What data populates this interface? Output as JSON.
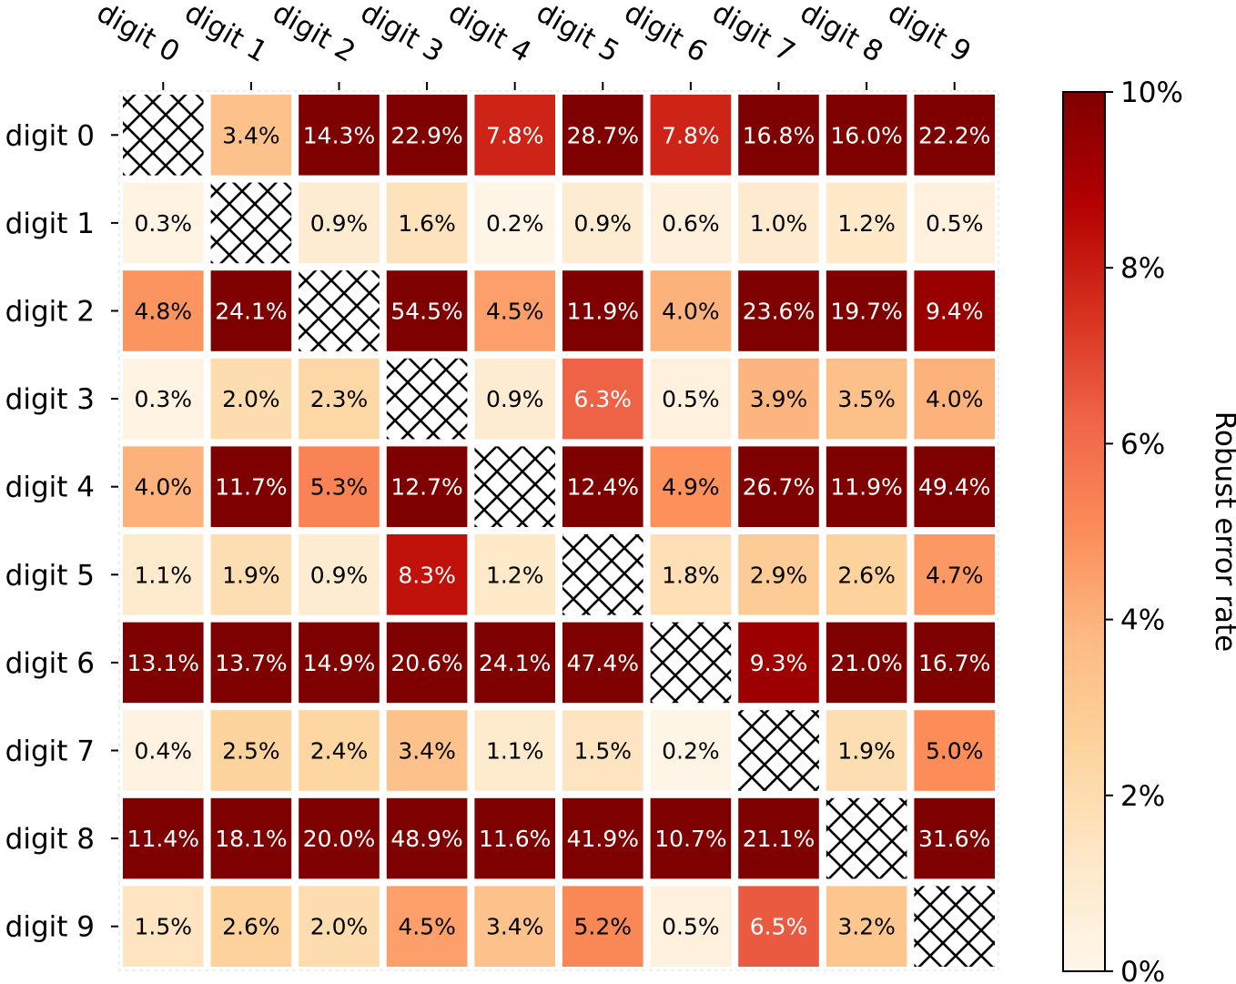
{
  "chart_data": {
    "type": "heatmap",
    "rows": [
      "digit 0",
      "digit 1",
      "digit 2",
      "digit 3",
      "digit 4",
      "digit 5",
      "digit 6",
      "digit 7",
      "digit 8",
      "digit 9"
    ],
    "columns": [
      "digit 0",
      "digit 1",
      "digit 2",
      "digit 3",
      "digit 4",
      "digit 5",
      "digit 6",
      "digit 7",
      "digit 8",
      "digit 9"
    ],
    "values": [
      [
        null,
        3.4,
        14.3,
        22.9,
        7.8,
        28.7,
        7.8,
        16.8,
        16.0,
        22.2
      ],
      [
        0.3,
        null,
        0.9,
        1.6,
        0.2,
        0.9,
        0.6,
        1.0,
        1.2,
        0.5
      ],
      [
        4.8,
        24.1,
        null,
        54.5,
        4.5,
        11.9,
        4.0,
        23.6,
        19.7,
        9.4
      ],
      [
        0.3,
        2.0,
        2.3,
        null,
        0.9,
        6.3,
        0.5,
        3.9,
        3.5,
        4.0
      ],
      [
        4.0,
        11.7,
        5.3,
        12.7,
        null,
        12.4,
        4.9,
        26.7,
        11.9,
        49.4
      ],
      [
        1.1,
        1.9,
        0.9,
        8.3,
        1.2,
        null,
        1.8,
        2.9,
        2.6,
        4.7
      ],
      [
        13.1,
        13.7,
        14.9,
        20.6,
        24.1,
        47.4,
        null,
        9.3,
        21.0,
        16.7
      ],
      [
        0.4,
        2.5,
        2.4,
        3.4,
        1.1,
        1.5,
        0.2,
        null,
        1.9,
        5.0
      ],
      [
        11.4,
        18.1,
        20.0,
        48.9,
        11.6,
        41.9,
        10.7,
        21.1,
        null,
        31.6
      ],
      [
        1.5,
        2.6,
        2.0,
        4.5,
        3.4,
        5.2,
        0.5,
        6.5,
        3.2,
        null
      ]
    ],
    "cell_labels": [
      [
        "",
        "3.4%",
        "14.3%",
        "22.9%",
        "7.8%",
        "28.7%",
        "7.8%",
        "16.8%",
        "16.0%",
        "22.2%"
      ],
      [
        "0.3%",
        "",
        "0.9%",
        "1.6%",
        "0.2%",
        "0.9%",
        "0.6%",
        "1.0%",
        "1.2%",
        "0.5%"
      ],
      [
        "4.8%",
        "24.1%",
        "",
        "54.5%",
        "4.5%",
        "11.9%",
        "4.0%",
        "23.6%",
        "19.7%",
        "9.4%"
      ],
      [
        "0.3%",
        "2.0%",
        "2.3%",
        "",
        "0.9%",
        "6.3%",
        "0.5%",
        "3.9%",
        "3.5%",
        "4.0%"
      ],
      [
        "4.0%",
        "11.7%",
        "5.3%",
        "12.7%",
        "",
        "12.4%",
        "4.9%",
        "26.7%",
        "11.9%",
        "49.4%"
      ],
      [
        "1.1%",
        "1.9%",
        "0.9%",
        "8.3%",
        "1.2%",
        "",
        "1.8%",
        "2.9%",
        "2.6%",
        "4.7%"
      ],
      [
        "13.1%",
        "13.7%",
        "14.9%",
        "20.6%",
        "24.1%",
        "47.4%",
        "",
        "9.3%",
        "21.0%",
        "16.7%"
      ],
      [
        "0.4%",
        "2.5%",
        "2.4%",
        "3.4%",
        "1.1%",
        "1.5%",
        "0.2%",
        "",
        "1.9%",
        "5.0%"
      ],
      [
        "11.4%",
        "18.1%",
        "20.0%",
        "48.9%",
        "11.6%",
        "41.9%",
        "10.7%",
        "21.1%",
        "",
        "31.6%"
      ],
      [
        "1.5%",
        "2.6%",
        "2.0%",
        "4.5%",
        "3.4%",
        "5.2%",
        "0.5%",
        "6.5%",
        "3.2%",
        ""
      ]
    ],
    "diagonal": "hatched",
    "colorbar": {
      "label": "Robust error rate",
      "range": [
        0,
        10
      ],
      "ticks": [
        0,
        2,
        4,
        6,
        8,
        10
      ],
      "tick_labels": [
        "0%",
        "2%",
        "4%",
        "6%",
        "8%",
        "10%"
      ],
      "colormap": "OrRd",
      "colors": [
        "#fff7ec",
        "#fee8c8",
        "#fdd49e",
        "#fdbb84",
        "#fc8d59",
        "#ef6548",
        "#d7301f",
        "#b30000",
        "#7f0000"
      ]
    },
    "x_axis_position": "top",
    "grid": false
  }
}
